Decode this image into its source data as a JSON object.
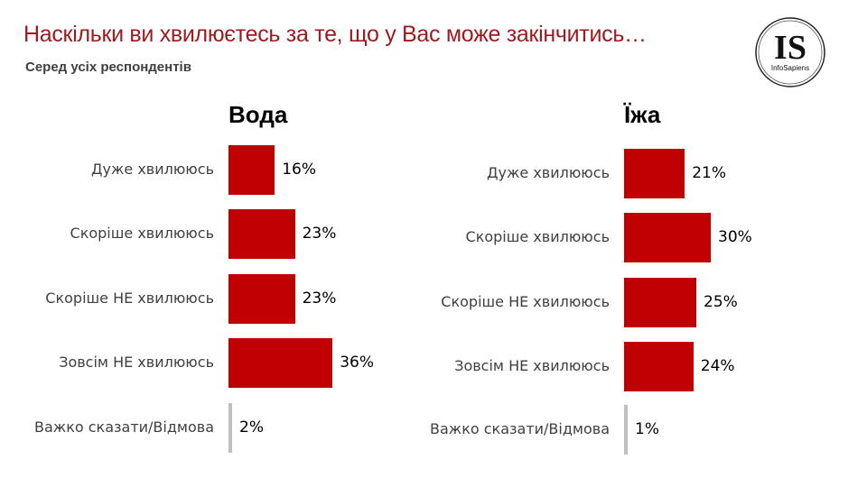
{
  "title": "Наскільки ви хвилюєтесь за те, що у Вас може закінчитись…",
  "subtitle": "Серед усіх респондентів",
  "logo": {
    "text": "IS",
    "name": "InfoSapiens"
  },
  "colors": {
    "bar": "#c00000",
    "bar_dk": "#bfbfbf",
    "title": "#9b1b1f"
  },
  "chart_data": [
    {
      "type": "bar",
      "orientation": "horizontal",
      "title": "Вода",
      "categories": [
        "Дуже хвилююсь",
        "Скоріше хвилююсь",
        "Скоріше НЕ хвилююсь",
        "Зовсім НЕ хвилююсь",
        "Важко сказати/Відмова"
      ],
      "values": [
        16,
        23,
        23,
        36,
        2
      ],
      "labels": [
        "16%",
        "23%",
        "23%",
        "36%",
        "2%"
      ]
    },
    {
      "type": "bar",
      "orientation": "horizontal",
      "title": "Їжа",
      "categories": [
        "Дуже хвилююсь",
        "Скоріше хвилююсь",
        "Скоріше НЕ хвилююсь",
        "Зовсім НЕ хвилююсь",
        "Важко сказати/Відмова"
      ],
      "values": [
        21,
        30,
        25,
        24,
        1
      ],
      "labels": [
        "21%",
        "30%",
        "25%",
        "24%",
        "1%"
      ]
    }
  ]
}
